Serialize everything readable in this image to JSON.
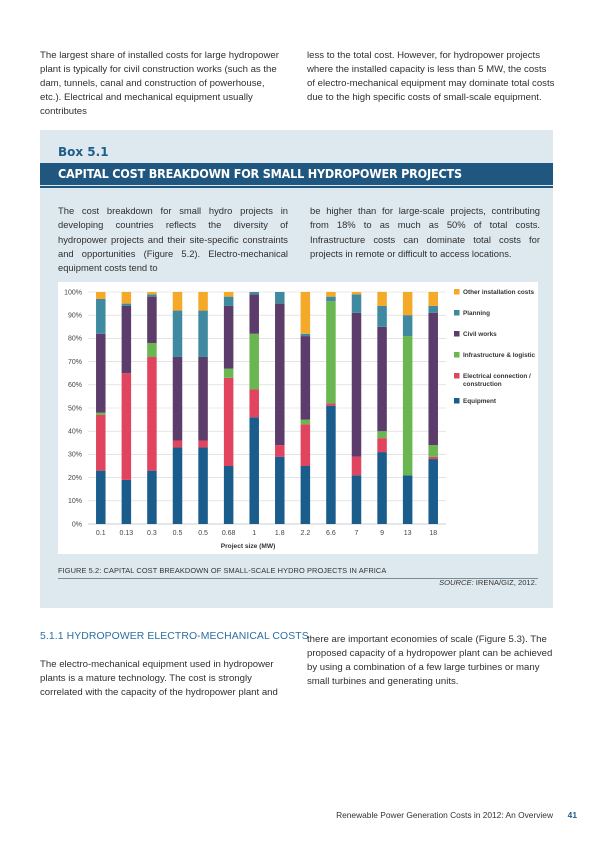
{
  "intro": {
    "left": "The largest share of installed costs for large hydropower plant is typically for civil construction works (such as the dam, tunnels, canal and construction of powerhouse, etc.). Electrical and mechanical equipment usually contributes",
    "right": "less to the total cost. However, for hydropower projects where the installed capacity is less than 5 MW, the costs of electro-mechanical equipment may dominate total costs due to the high specific costs of small-scale equipment."
  },
  "box": {
    "label": "Box 5.1",
    "title": "CAPITAL COST BREAKDOWN FOR SMALL HYDROPOWER PROJECTS",
    "left": "The cost breakdown for small hydro projects in developing countries reflects the diversity of hydropower projects and their site-specific constraints and opportunities (Figure 5.2). Electro-mechanical equipment costs tend to",
    "right": "be higher than for large-scale projects, contributing from 18% to as much as 50% of total costs. Infrastructure costs can dominate total costs for projects in remote or difficult to access locations."
  },
  "figure": {
    "caption": "FIGURE 5.2: CAPITAL COST BREAKDOWN OF SMALL-SCALE HYDRO PROJECTS IN AFRICA",
    "source_prefix": "SOURCE:",
    "source": " IRENA/GIZ, 2012."
  },
  "chart_data": {
    "type": "bar",
    "stacked": true,
    "xlabel": "Project size (MW)",
    "ylabel": "",
    "ylim": [
      0,
      100
    ],
    "yticks": [
      "0%",
      "10%",
      "20%",
      "30%",
      "40%",
      "50%",
      "60%",
      "70%",
      "80%",
      "90%",
      "100%"
    ],
    "grid": true,
    "legend_position": "right",
    "categories": [
      "0.1",
      "0.13",
      "0.3",
      "0.5",
      "0.5",
      "0.68",
      "1",
      "1.8",
      "2.2",
      "6.6",
      "7",
      "9",
      "13",
      "18"
    ],
    "series": [
      {
        "name": "Equipment",
        "color": "#1a5d8c",
        "values": [
          23,
          19,
          23,
          33,
          33,
          25,
          46,
          29,
          25,
          51,
          21,
          31,
          21,
          28
        ]
      },
      {
        "name": "Electrical connection / construction",
        "color": "#e0445e",
        "values": [
          24,
          46,
          49,
          3,
          3,
          38,
          12,
          5,
          18,
          1,
          8,
          6,
          0,
          1
        ]
      },
      {
        "name": "Infrastructure & logistic",
        "color": "#6ab650",
        "values": [
          1,
          0,
          6,
          0,
          0,
          4,
          24,
          0,
          2,
          44,
          0,
          3,
          60,
          5
        ]
      },
      {
        "name": "Civil works",
        "color": "#5c3c6b",
        "values": [
          34,
          29,
          20,
          36,
          36,
          27,
          17,
          61,
          36,
          0,
          62,
          45,
          0,
          57
        ]
      },
      {
        "name": "Planning",
        "color": "#3f8aa0",
        "values": [
          15,
          1,
          1,
          20,
          20,
          4,
          1,
          5,
          1,
          2,
          8,
          9,
          9,
          3
        ]
      },
      {
        "name": "Other installation costs",
        "color": "#f4a929",
        "values": [
          3,
          5,
          1,
          8,
          8,
          2,
          0,
          0,
          18,
          2,
          1,
          6,
          10,
          6
        ]
      }
    ]
  },
  "section": {
    "heading": "5.1.1 HYDROPOWER ELECTRO-MECHANICAL COSTS",
    "left": "The electro-mechanical equipment used in hydropower plants is a mature technology. The cost is strongly correlated with the capacity of the hydropower plant and",
    "right": "there are important economies of scale (Figure 5.3). The proposed capacity of a hydropower plant can be achieved by using a combination of a few large turbines or many small turbines and generating units."
  },
  "footer": {
    "title": "Renewable Power Generation Costs in 2012: An Overview",
    "page": "41"
  }
}
